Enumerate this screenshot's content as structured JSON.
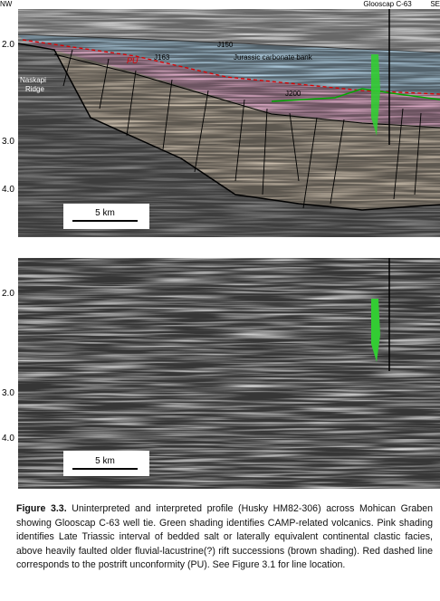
{
  "header": {
    "left": "NW",
    "right": "SE",
    "well": "Glooscap C-63"
  },
  "top_panel": {
    "depth_labels": [
      "2.0",
      "3.0",
      "4.0"
    ],
    "horizons": {
      "j150": "J150",
      "j163": "J163",
      "pu": "PU",
      "j200": "J200"
    },
    "annotations": {
      "bank": "Jurassic carbonate bank",
      "ridge": [
        "Naskapi",
        "Ridge"
      ]
    },
    "scale_bar": "5 km"
  },
  "bottom_panel": {
    "depth_labels": [
      "2.0",
      "3.0",
      "4.0"
    ],
    "scale_bar": "5 km"
  },
  "caption": {
    "label": "Figure 3.3.",
    "text": "Uninterpreted and interpreted profile (Husky HM82-306) across Mohican Graben showing Glooscap C-63 well tie. Green shading identifies CAMP-related volcanics.  Pink shading identifies Late Triassic interval of bedded salt or laterally equivalent continental clastic facies, above heavily faulted older fluvial-lacustrine(?) rift successions (brown shading). Red dashed line corresponds to the postrift unconformity (PU). See Figure 3.1 for line location."
  }
}
